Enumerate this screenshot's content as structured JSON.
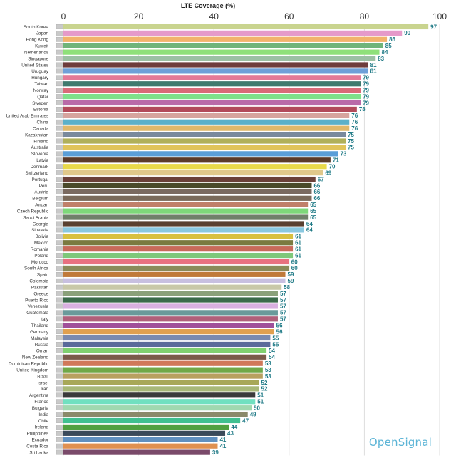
{
  "chart_data": {
    "type": "bar",
    "orientation": "horizontal",
    "title": "LTE Coverage (%)",
    "xlim": [
      0,
      100
    ],
    "ticks": [
      0,
      20,
      40,
      60,
      80,
      100
    ],
    "grid": true,
    "categories": [
      "South Korea",
      "Japan",
      "Hong Kong",
      "Kuwait",
      "Netherlands",
      "Singapore",
      "United States",
      "Uruguay",
      "Hungary",
      "Taiwan",
      "Norway",
      "Qatar",
      "Sweden",
      "Estonia",
      "United Arab Emirates",
      "China",
      "Canada",
      "Kazakhstan",
      "Finland",
      "Australia",
      "Slovenia",
      "Latvia",
      "Denmark",
      "Switzerland",
      "Portugal",
      "Peru",
      "Austria",
      "Belgium",
      "Jordan",
      "Czech Republic",
      "Saudi Arabia",
      "Georgia",
      "Slovakia",
      "Bolivia",
      "Mexico",
      "Romania",
      "Poland",
      "Morocco",
      "South Africa",
      "Spain",
      "Colombia",
      "Pakistan",
      "Greece",
      "Puerto Rico",
      "Venezuela",
      "Guatemala",
      "Italy",
      "Thailand",
      "Germany",
      "Malaysia",
      "Russia",
      "Oman",
      "New Zealand",
      "Dominican Republic",
      "United Kingdom",
      "Brazil",
      "Israel",
      "Iran",
      "Argentina",
      "France",
      "Bulgaria",
      "India",
      "Chile",
      "Ireland",
      "Philippines",
      "Ecuador",
      "Costa Rica",
      "Sri Lanka"
    ],
    "values": [
      97,
      90,
      86,
      85,
      84,
      83,
      81,
      81,
      79,
      79,
      79,
      79,
      79,
      78,
      76,
      76,
      76,
      75,
      75,
      75,
      73,
      71,
      70,
      69,
      67,
      66,
      66,
      66,
      65,
      65,
      65,
      64,
      64,
      61,
      61,
      61,
      61,
      60,
      60,
      59,
      59,
      58,
      57,
      57,
      57,
      57,
      57,
      56,
      56,
      55,
      55,
      54,
      54,
      53,
      53,
      53,
      52,
      52,
      51,
      51,
      50,
      49,
      47,
      44,
      43,
      41,
      41,
      39
    ],
    "bar_colors": [
      "#c9d48f",
      "#e59ac9",
      "#f2b36b",
      "#6fb47a",
      "#8fe07a",
      "#9cc0a4",
      "#6e3c3c",
      "#6fa0d8",
      "#e47a97",
      "#3f7a6e",
      "#d96a78",
      "#7ee08a",
      "#b96aa8",
      "#b24a5a",
      "#d6a49e",
      "#5bb0c9",
      "#e0b86a",
      "#7a8a9c",
      "#b0b05a",
      "#e0c45a",
      "#5a9ed8",
      "#5a3a2a",
      "#e8d84a",
      "#e0c88a",
      "#6a4038",
      "#4a4a2a",
      "#7a6a60",
      "#7a6a5a",
      "#c0806a",
      "#7ed87a",
      "#70806a",
      "#5a4030",
      "#8ac8e0",
      "#d8c040",
      "#7a7a40",
      "#c86a5a",
      "#7ec87a",
      "#e87080",
      "#8a8a5a",
      "#c07a3a",
      "#c8c0e0",
      "#c8c8a8",
      "#8aa07a",
      "#3a6a4a",
      "#d8b0e0",
      "#6a9a9a",
      "#b0607a",
      "#a0509a",
      "#e0a050",
      "#7a8ab0",
      "#5a6a9a",
      "#80d070",
      "#7a5a4a",
      "#d0785a",
      "#70a848",
      "#b8a060",
      "#a8a858",
      "#a8b878",
      "#3a3a3a",
      "#70e0c0",
      "#a0d8b0",
      "#8a8a6a",
      "#40c090",
      "#50a040",
      "#3a4a5a",
      "#6090c0",
      "#e09050",
      "#7a4a6a"
    ],
    "label_color": "#1f7a86"
  },
  "brand": "OpenSignal"
}
